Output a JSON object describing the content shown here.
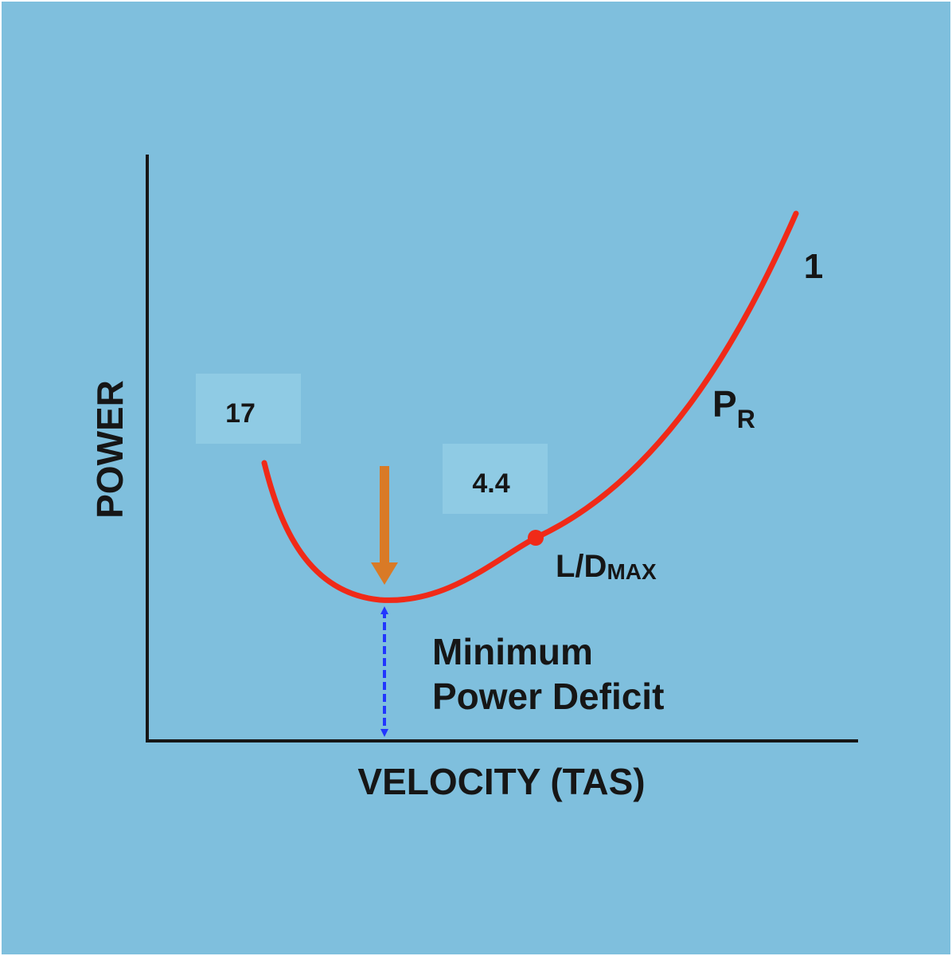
{
  "colors": {
    "background": "#7fbfdd",
    "box": "#8fcbe4",
    "axis": "#161616",
    "curve": "#f02a18",
    "arrow_down": "#d97a26",
    "deficit_arrow": "#2236ff"
  },
  "axes": {
    "x_label": "VELOCITY (TAS)",
    "y_label": "POWER"
  },
  "curve": {
    "name_main": "P",
    "name_sub": "R",
    "marker_main": "L/D",
    "marker_sub": "MAX"
  },
  "labels": {
    "number_17": "17",
    "number_44": "4.4",
    "number_1": "1",
    "deficit_line1": "Minimum",
    "deficit_line2": "Power Deficit"
  }
}
